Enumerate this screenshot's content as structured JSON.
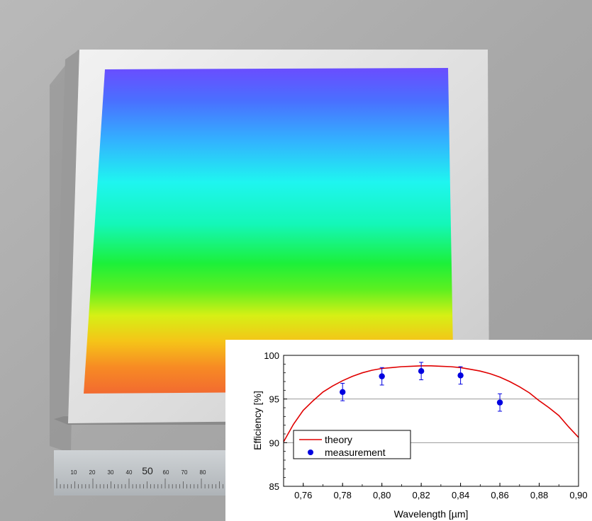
{
  "photo": {
    "ruler_labels": [
      "10",
      "20",
      "30",
      "40",
      "50",
      "60",
      "70",
      "80"
    ]
  },
  "colors": {
    "theory": "#e00000",
    "measurement": "#0000e0",
    "grid": "#9a9a9a"
  },
  "chart_data": {
    "type": "scatter",
    "title": "",
    "xlabel": "Wavelength [µm]",
    "ylabel": "Efficiency [%]",
    "xlim": [
      0.75,
      0.9
    ],
    "ylim": [
      85,
      100
    ],
    "x_ticks": [
      0.76,
      0.78,
      0.8,
      0.82,
      0.84,
      0.86,
      0.88,
      0.9
    ],
    "x_tick_labels": [
      "0,76",
      "0,78",
      "0,80",
      "0,82",
      "0,84",
      "0,86",
      "0,88",
      "0,90"
    ],
    "y_ticks": [
      85,
      90,
      95,
      100
    ],
    "y_tick_labels": [
      "85",
      "90",
      "95",
      "100"
    ],
    "grid_lines_y": [
      90,
      95
    ],
    "legend_position": "lower-left",
    "series": [
      {
        "name": "theory",
        "style": "line",
        "x": [
          0.75,
          0.755,
          0.76,
          0.765,
          0.77,
          0.775,
          0.78,
          0.785,
          0.79,
          0.795,
          0.8,
          0.805,
          0.81,
          0.815,
          0.82,
          0.825,
          0.83,
          0.835,
          0.84,
          0.845,
          0.85,
          0.855,
          0.86,
          0.865,
          0.87,
          0.875,
          0.88,
          0.885,
          0.89,
          0.895,
          0.9
        ],
        "y": [
          90.1,
          92.1,
          93.7,
          94.8,
          95.8,
          96.5,
          97.1,
          97.6,
          98.0,
          98.3,
          98.5,
          98.6,
          98.7,
          98.75,
          98.8,
          98.8,
          98.75,
          98.7,
          98.6,
          98.4,
          98.2,
          97.9,
          97.5,
          97.0,
          96.4,
          95.7,
          94.8,
          94.0,
          93.1,
          91.8,
          90.6
        ]
      },
      {
        "name": "measurement",
        "style": "points",
        "x": [
          0.78,
          0.8,
          0.82,
          0.84,
          0.86
        ],
        "y": [
          95.8,
          97.6,
          98.2,
          97.7,
          94.6
        ],
        "error": [
          1.0,
          1.0,
          1.0,
          1.0,
          1.0
        ]
      }
    ]
  }
}
